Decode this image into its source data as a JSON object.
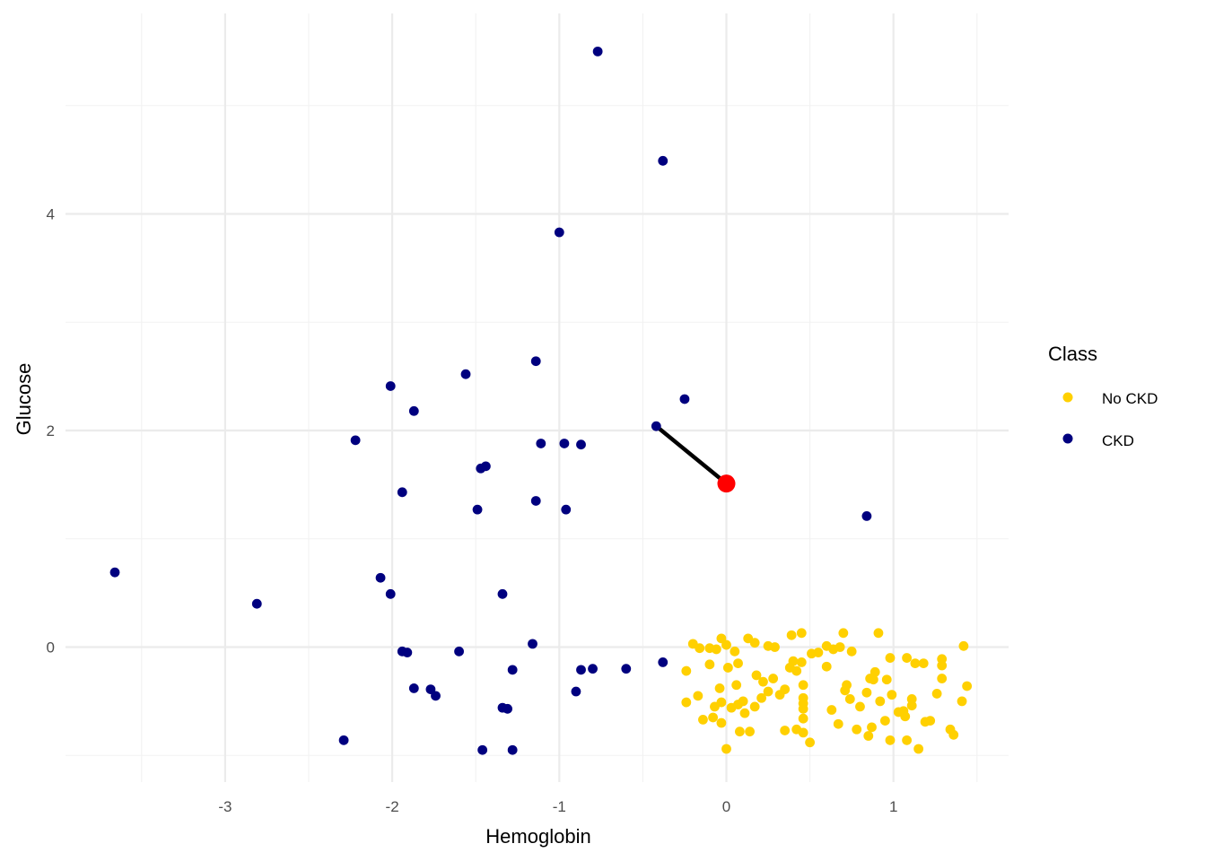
{
  "chart_data": {
    "type": "scatter",
    "title": "",
    "xlabel": "Hemoglobin",
    "ylabel": "Glucose",
    "xlim": [
      -3.7,
      1.45
    ],
    "ylim": [
      -1.02,
      5.65
    ],
    "x_ticks": [
      -3,
      -2,
      -1,
      0,
      1
    ],
    "x_tick_labels": [
      "-3",
      "-2",
      "-1",
      "0",
      "1"
    ],
    "y_ticks": [
      0,
      2,
      4
    ],
    "y_tick_labels": [
      "0",
      "2",
      "4"
    ],
    "grid": true,
    "legend": {
      "title": "Class",
      "position": "right",
      "entries": [
        {
          "label": "No CKD",
          "color": "#FFD000"
        },
        {
          "label": "CKD",
          "color": "#00007F"
        }
      ]
    },
    "series": [
      {
        "name": "No CKD",
        "color": "#FFD000",
        "points": [
          [
            -0.2,
            0.03
          ],
          [
            -0.16,
            -0.01
          ],
          [
            -0.1,
            -0.01
          ],
          [
            -0.06,
            -0.02
          ],
          [
            -0.03,
            0.08
          ],
          [
            0.0,
            0.02
          ],
          [
            0.05,
            -0.04
          ],
          [
            0.13,
            0.08
          ],
          [
            0.17,
            0.04
          ],
          [
            0.25,
            0.01
          ],
          [
            0.29,
            0.0
          ],
          [
            0.39,
            0.11
          ],
          [
            0.45,
            0.13
          ],
          [
            0.51,
            -0.06
          ],
          [
            0.55,
            -0.05
          ],
          [
            0.6,
            0.01
          ],
          [
            0.64,
            -0.02
          ],
          [
            0.68,
            0.0
          ],
          [
            0.7,
            0.13
          ],
          [
            0.75,
            -0.04
          ],
          [
            0.91,
            0.13
          ],
          [
            0.98,
            -0.1
          ],
          [
            1.08,
            -0.1
          ],
          [
            1.13,
            -0.15
          ],
          [
            1.18,
            -0.15
          ],
          [
            1.29,
            -0.11
          ],
          [
            1.42,
            0.01
          ],
          [
            -0.24,
            -0.22
          ],
          [
            -0.24,
            -0.51
          ],
          [
            -0.17,
            -0.45
          ],
          [
            -0.14,
            -0.67
          ],
          [
            -0.1,
            -0.16
          ],
          [
            -0.07,
            -0.55
          ],
          [
            -0.04,
            -0.38
          ],
          [
            -0.03,
            -0.51
          ],
          [
            -0.03,
            -0.7
          ],
          [
            0.01,
            -0.19
          ],
          [
            0.03,
            -0.56
          ],
          [
            0.06,
            -0.35
          ],
          [
            0.07,
            -0.15
          ],
          [
            0.07,
            -0.53
          ],
          [
            0.1,
            -0.5
          ],
          [
            0.11,
            -0.61
          ],
          [
            0.17,
            -0.55
          ],
          [
            0.18,
            -0.26
          ],
          [
            0.21,
            -0.47
          ],
          [
            0.22,
            -0.32
          ],
          [
            0.25,
            -0.41
          ],
          [
            0.28,
            -0.29
          ],
          [
            0.32,
            -0.44
          ],
          [
            0.35,
            -0.39
          ],
          [
            0.38,
            -0.19
          ],
          [
            0.4,
            -0.13
          ],
          [
            0.42,
            -0.22
          ],
          [
            0.45,
            -0.14
          ],
          [
            0.46,
            -0.35
          ],
          [
            0.46,
            -0.47
          ],
          [
            0.46,
            -0.52
          ],
          [
            0.46,
            -0.57
          ],
          [
            0.46,
            -0.66
          ],
          [
            0.6,
            -0.18
          ],
          [
            0.63,
            -0.58
          ],
          [
            0.67,
            -0.71
          ],
          [
            0.71,
            -0.4
          ],
          [
            0.72,
            -0.35
          ],
          [
            0.74,
            -0.48
          ],
          [
            0.78,
            -0.76
          ],
          [
            0.8,
            -0.55
          ],
          [
            0.84,
            -0.42
          ],
          [
            0.86,
            -0.29
          ],
          [
            0.88,
            -0.3
          ],
          [
            0.89,
            -0.23
          ],
          [
            0.92,
            -0.5
          ],
          [
            0.96,
            -0.3
          ],
          [
            0.99,
            -0.44
          ],
          [
            1.03,
            -0.6
          ],
          [
            1.06,
            -0.59
          ],
          [
            1.07,
            -0.64
          ],
          [
            1.11,
            -0.48
          ],
          [
            1.11,
            -0.54
          ],
          [
            1.19,
            -0.69
          ],
          [
            1.22,
            -0.68
          ],
          [
            1.26,
            -0.43
          ],
          [
            1.29,
            -0.17
          ],
          [
            1.29,
            -0.29
          ],
          [
            1.34,
            -0.76
          ],
          [
            1.36,
            -0.81
          ],
          [
            1.41,
            -0.5
          ],
          [
            1.44,
            -0.36
          ],
          [
            -0.08,
            -0.65
          ],
          [
            0.08,
            -0.78
          ],
          [
            0.14,
            -0.78
          ],
          [
            0.35,
            -0.77
          ],
          [
            0.42,
            -0.76
          ],
          [
            0.46,
            -0.79
          ],
          [
            0.5,
            -0.88
          ],
          [
            0.87,
            -0.74
          ],
          [
            0.85,
            -0.82
          ],
          [
            0.98,
            -0.86
          ],
          [
            1.08,
            -0.86
          ],
          [
            1.15,
            -0.94
          ],
          [
            0.0,
            -0.94
          ],
          [
            0.95,
            -0.68
          ]
        ]
      },
      {
        "name": "CKD",
        "color": "#00007F",
        "points": [
          [
            -0.77,
            5.5
          ],
          [
            -0.38,
            4.49
          ],
          [
            -1.0,
            3.83
          ],
          [
            -1.14,
            2.64
          ],
          [
            -1.56,
            2.52
          ],
          [
            -2.01,
            2.41
          ],
          [
            -0.25,
            2.29
          ],
          [
            -1.87,
            2.18
          ],
          [
            -0.42,
            2.04
          ],
          [
            -2.22,
            1.91
          ],
          [
            -1.11,
            1.88
          ],
          [
            -0.97,
            1.88
          ],
          [
            -0.87,
            1.87
          ],
          [
            -1.44,
            1.67
          ],
          [
            -1.47,
            1.65
          ],
          [
            -1.94,
            1.43
          ],
          [
            -1.14,
            1.35
          ],
          [
            -1.49,
            1.27
          ],
          [
            -0.96,
            1.27
          ],
          [
            0.84,
            1.21
          ],
          [
            -3.66,
            0.69
          ],
          [
            -2.07,
            0.64
          ],
          [
            -2.01,
            0.49
          ],
          [
            -1.34,
            0.49
          ],
          [
            -2.81,
            0.4
          ],
          [
            -1.16,
            0.03
          ],
          [
            -1.94,
            -0.04
          ],
          [
            -1.91,
            -0.05
          ],
          [
            -1.6,
            -0.04
          ],
          [
            -0.38,
            -0.14
          ],
          [
            -1.28,
            -0.21
          ],
          [
            -0.87,
            -0.21
          ],
          [
            -0.8,
            -0.2
          ],
          [
            -0.6,
            -0.2
          ],
          [
            -1.87,
            -0.38
          ],
          [
            -1.77,
            -0.39
          ],
          [
            -1.74,
            -0.45
          ],
          [
            -0.9,
            -0.41
          ],
          [
            -1.34,
            -0.56
          ],
          [
            -1.31,
            -0.57
          ],
          [
            -2.29,
            -0.86
          ],
          [
            -1.46,
            -0.95
          ],
          [
            -1.28,
            -0.95
          ]
        ]
      }
    ],
    "highlight_point": {
      "x": 0.0,
      "y": 1.51,
      "color": "#FF0000"
    },
    "segment": {
      "x1": -0.42,
      "y1": 2.04,
      "x2": 0.0,
      "y2": 1.51,
      "color": "#000000"
    }
  }
}
